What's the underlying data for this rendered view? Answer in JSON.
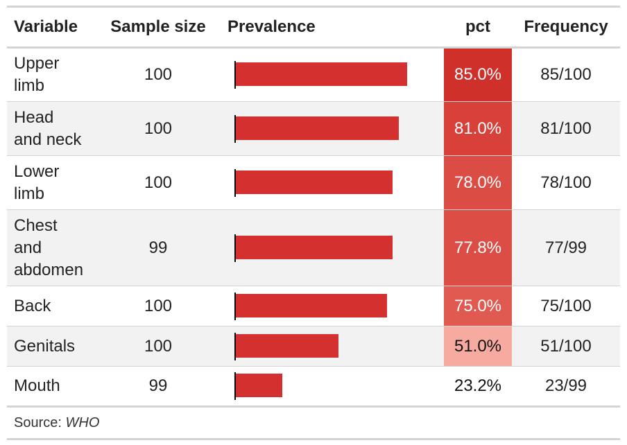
{
  "columns": {
    "variable": "Variable",
    "sample_size": "Sample size",
    "prevalence": "Prevalence",
    "pct": "pct",
    "frequency": "Frequency"
  },
  "rows": [
    {
      "variable_lines": [
        "Upper",
        "limb"
      ],
      "sample_size": "100",
      "pct_label": "85.0%",
      "frequency": "85/100",
      "pct_color": "#cf3029",
      "pct_text_color": "#ffffff"
    },
    {
      "variable_lines": [
        "Head",
        "and neck"
      ],
      "sample_size": "100",
      "pct_label": "81.0%",
      "frequency": "81/100",
      "pct_color": "#d8413a",
      "pct_text_color": "#ffffff"
    },
    {
      "variable_lines": [
        "Lower",
        "limb"
      ],
      "sample_size": "100",
      "pct_label": "78.0%",
      "frequency": "78/100",
      "pct_color": "#db4c44",
      "pct_text_color": "#ffffff"
    },
    {
      "variable_lines": [
        "Chest",
        "and",
        "abdomen"
      ],
      "sample_size": "99",
      "pct_label": "77.8%",
      "frequency": "77/99",
      "pct_color": "#dc4d45",
      "pct_text_color": "#ffffff"
    },
    {
      "variable_lines": [
        "Back"
      ],
      "sample_size": "100",
      "pct_label": "75.0%",
      "frequency": "75/100",
      "pct_color": "#e05a51",
      "pct_text_color": "#ffffff"
    },
    {
      "variable_lines": [
        "Genitals"
      ],
      "sample_size": "100",
      "pct_label": "51.0%",
      "frequency": "51/100",
      "pct_color": "#f6aaa0",
      "pct_text_color": "#111111"
    },
    {
      "variable_lines": [
        "Mouth"
      ],
      "sample_size": "99",
      "pct_label": "23.2%",
      "frequency": "23/99",
      "pct_color": "#ffffff",
      "pct_text_color": "#111111"
    }
  ],
  "source": {
    "prefix": "Source:",
    "name": "WHO"
  },
  "colors": {
    "bar": "#d3302f",
    "axis": "#000000",
    "stripe": "#f2f2f2",
    "rule": "#d3d3d3"
  },
  "chart_data": {
    "type": "table",
    "columns": [
      "Variable",
      "Sample size",
      "Prevalence",
      "pct",
      "Frequency"
    ],
    "categories": [
      "Upper limb",
      "Head and neck",
      "Lower limb",
      "Chest and abdomen",
      "Back",
      "Genitals",
      "Mouth"
    ],
    "sample_size": [
      100,
      100,
      100,
      99,
      100,
      100,
      99
    ],
    "values": [
      85.0,
      81.0,
      78.0,
      77.8,
      75.0,
      51.0,
      23.2
    ],
    "frequency": [
      "85/100",
      "81/100",
      "78/100",
      "77/99",
      "75/100",
      "51/100",
      "23/99"
    ],
    "bar_max": 100
  }
}
